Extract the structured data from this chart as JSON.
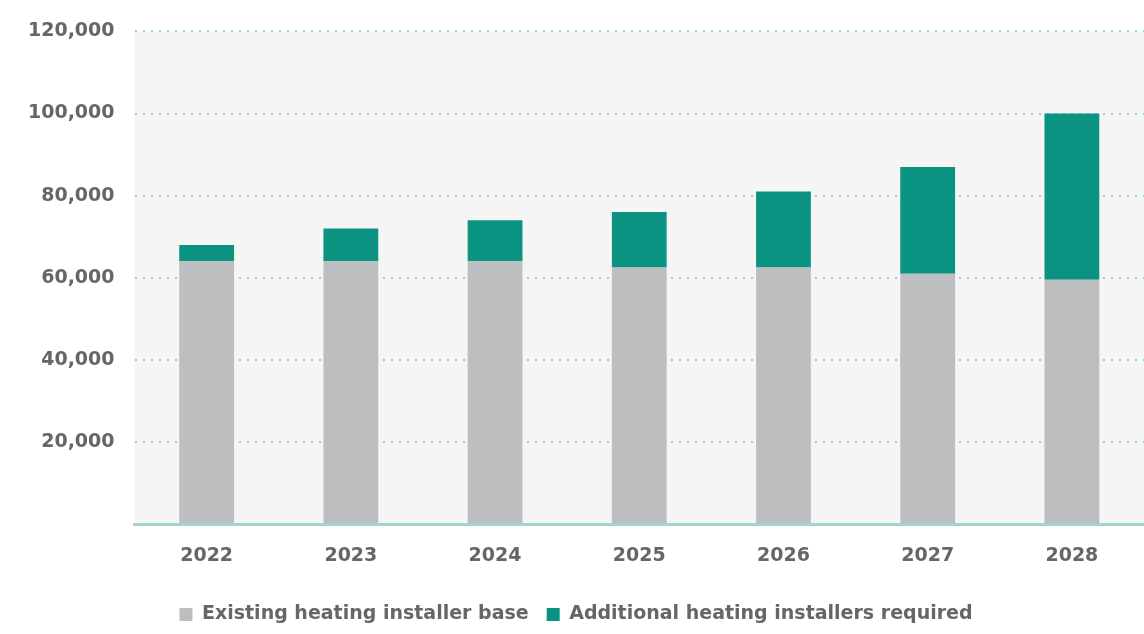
{
  "chart_data": {
    "type": "bar",
    "stacked": true,
    "categories": [
      "2022",
      "2023",
      "2024",
      "2025",
      "2026",
      "2027",
      "2028"
    ],
    "series": [
      {
        "name": "Existing heating installer base",
        "color": "#bdbebf",
        "values": [
          64000,
          64000,
          64000,
          62500,
          62500,
          61000,
          59500
        ]
      },
      {
        "name": "Additional heating installers required",
        "color": "#0a9380",
        "values": [
          4000,
          8000,
          10000,
          13500,
          18500,
          26000,
          40500
        ]
      }
    ],
    "ylim": [
      0,
      120000
    ],
    "yticks": [
      {
        "value": 0,
        "label": null
      },
      {
        "value": 20000,
        "label": "20,000"
      },
      {
        "value": 40000,
        "label": "40,000"
      },
      {
        "value": 60000,
        "label": "60,000"
      },
      {
        "value": 80000,
        "label": "80,000"
      },
      {
        "value": 100000,
        "label": "100,000"
      },
      {
        "value": 120000,
        "label": "120,000"
      }
    ],
    "grid": "y",
    "line_style": "dotted",
    "legend": "bottom"
  }
}
